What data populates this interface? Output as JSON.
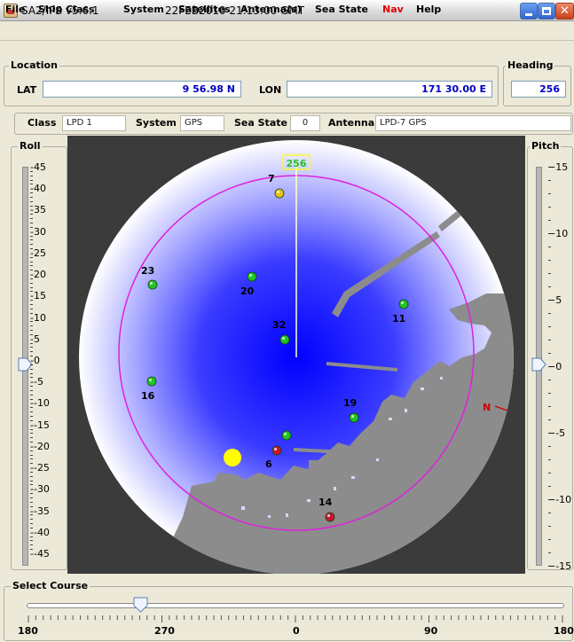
{
  "window": {
    "title": "SA2/IPS v5.6.1",
    "datetime": "22FEB2010 21:13:00 GMT"
  },
  "menu": [
    "File",
    "Ship Class",
    "System",
    "Satellites",
    "Antenna(s)",
    "Sea State",
    "Nav",
    "Help"
  ],
  "location": {
    "group_label": "Location",
    "lat_label": "LAT",
    "lat_value": "9 56.98 N",
    "lon_label": "LON",
    "lon_value": "171 30.00 E"
  },
  "heading": {
    "group_label": "Heading",
    "value": "256"
  },
  "settings": {
    "class_label": "Class",
    "class_value": "LPD 1",
    "system_label": "System",
    "system_value": "GPS",
    "sea_state_label": "Sea State",
    "sea_state_value": "0",
    "antenna_label": "Antenna",
    "antenna_value": "LPD-7 GPS"
  },
  "roll": {
    "label": "Roll",
    "ticks": [
      "45",
      "40",
      "35",
      "30",
      "25",
      "20",
      "15",
      "10",
      "5",
      "0",
      "-5",
      "-10",
      "-15",
      "-20",
      "-25",
      "-30",
      "-35",
      "-40",
      "-45"
    ],
    "value": 0
  },
  "pitch": {
    "label": "Pitch",
    "ticks": [
      "15",
      "10",
      "5",
      "0",
      "-5",
      "-10",
      "-15"
    ],
    "value": 0
  },
  "sky_plot": {
    "heading_marker": "256",
    "north_label": "N",
    "west_label": "",
    "satellites": [
      {
        "id": "7",
        "color": "#e6c218"
      },
      {
        "id": "23",
        "color": "#22c422"
      },
      {
        "id": "20",
        "color": "#22c422"
      },
      {
        "id": "11",
        "color": "#22c422"
      },
      {
        "id": "32",
        "color": "#22c422"
      },
      {
        "id": "16",
        "color": "#22c422"
      },
      {
        "id": "19",
        "color": "#22c422"
      },
      {
        "id": "",
        "color": "#22c422"
      },
      {
        "id": "6",
        "color": "#cc1133"
      },
      {
        "id": "14",
        "color": "#cc1133"
      }
    ],
    "colors": {
      "sky_center": "#0000ff",
      "horizon_ring": "#dd22dd",
      "heading_line": "#ffffcc",
      "sun": "#ffff00",
      "blockage": "#8a8a8a"
    }
  },
  "course": {
    "label": "Select Course",
    "ticks": [
      "180",
      "270",
      "0",
      "90",
      "180"
    ],
    "value": 252
  }
}
